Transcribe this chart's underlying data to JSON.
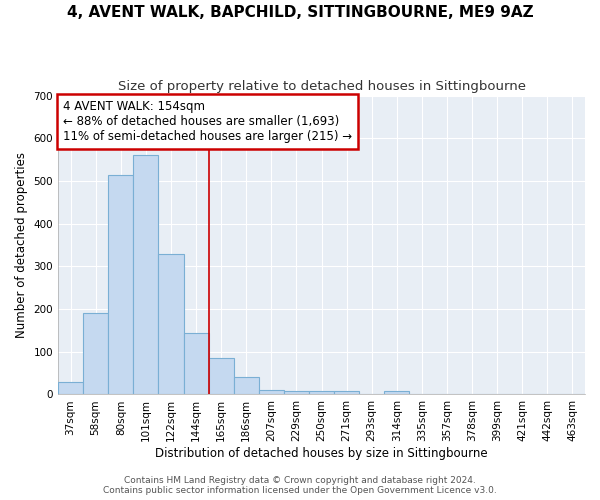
{
  "title": "4, AVENT WALK, BAPCHILD, SITTINGBOURNE, ME9 9AZ",
  "subtitle": "Size of property relative to detached houses in Sittingbourne",
  "xlabel": "Distribution of detached houses by size in Sittingbourne",
  "ylabel": "Number of detached properties",
  "categories": [
    "37sqm",
    "58sqm",
    "80sqm",
    "101sqm",
    "122sqm",
    "144sqm",
    "165sqm",
    "186sqm",
    "207sqm",
    "229sqm",
    "250sqm",
    "271sqm",
    "293sqm",
    "314sqm",
    "335sqm",
    "357sqm",
    "378sqm",
    "399sqm",
    "421sqm",
    "442sqm",
    "463sqm"
  ],
  "values": [
    30,
    190,
    515,
    560,
    330,
    145,
    85,
    42,
    10,
    8,
    8,
    8,
    0,
    8,
    0,
    0,
    0,
    0,
    0,
    0,
    0
  ],
  "bar_color": "#c5d9f0",
  "bar_edge_color": "#7aafd4",
  "background_color": "#ffffff",
  "plot_bg_color": "#e8eef5",
  "grid_color": "#ffffff",
  "annotation_line1": "4 AVENT WALK: 154sqm",
  "annotation_line2": "← 88% of detached houses are smaller (1,693)",
  "annotation_line3": "11% of semi-detached houses are larger (215) →",
  "annotation_box_color": "#ffffff",
  "annotation_box_edge_color": "#cc0000",
  "vline_color": "#cc0000",
  "vline_x_index": 5.5,
  "ylim": [
    0,
    700
  ],
  "yticks": [
    0,
    100,
    200,
    300,
    400,
    500,
    600,
    700
  ],
  "footer_line1": "Contains HM Land Registry data © Crown copyright and database right 2024.",
  "footer_line2": "Contains public sector information licensed under the Open Government Licence v3.0.",
  "title_fontsize": 11,
  "subtitle_fontsize": 9.5,
  "axis_label_fontsize": 8.5,
  "tick_fontsize": 7.5,
  "annotation_fontsize": 8.5,
  "footer_fontsize": 6.5
}
